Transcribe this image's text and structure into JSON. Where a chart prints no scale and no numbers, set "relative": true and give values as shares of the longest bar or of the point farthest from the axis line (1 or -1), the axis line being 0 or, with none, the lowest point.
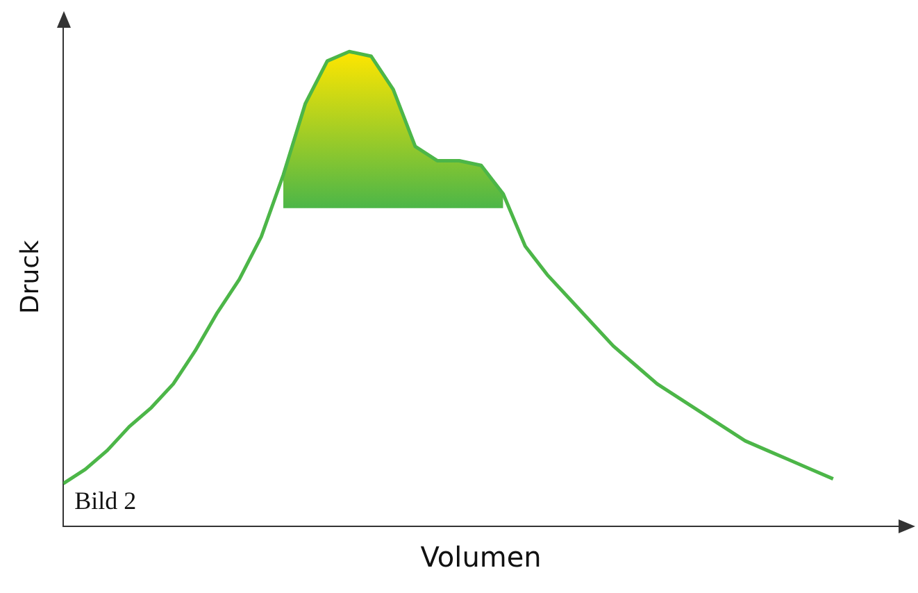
{
  "chart_data": {
    "type": "line",
    "xlabel": "Volumen",
    "ylabel": "Druck",
    "relative": true,
    "grid": false,
    "legend": false,
    "tick_labels": false,
    "marker": "none",
    "line_style": "solid",
    "categories": [
      null,
      null,
      null,
      null,
      null,
      null,
      null,
      null,
      null,
      null,
      null,
      null,
      null,
      null,
      null,
      null,
      null,
      null,
      null,
      null,
      null,
      null,
      null,
      null,
      null,
      null,
      null,
      null,
      null,
      null,
      null,
      null,
      null,
      null,
      null,
      null
    ],
    "series": [
      {
        "color": "#4cb648",
        "values": [
          0.09,
          0.12,
          0.16,
          0.21,
          0.25,
          0.3,
          0.37,
          0.45,
          0.52,
          0.61,
          0.74,
          0.89,
          0.98,
          1,
          0.99,
          0.92,
          0.8,
          0.77,
          0.77,
          0.76,
          0.7,
          0.59,
          0.53,
          0.48,
          0.43,
          0.38,
          0.34,
          0.3,
          0.27,
          0.24,
          0.21,
          0.18,
          0.16,
          0.14,
          0.12,
          0.1
        ],
        "lower": [
          null,
          null,
          null,
          null,
          null,
          null,
          null,
          null,
          null,
          null,
          0.67,
          0.67,
          0.67,
          0.67,
          0.67,
          0.67,
          0.67,
          0.67,
          0.67,
          0.67,
          0.67,
          null,
          null,
          null,
          null,
          null,
          null,
          null,
          null,
          null,
          null,
          null,
          null,
          null,
          null,
          null
        ],
        "upper": [
          null,
          null,
          null,
          null,
          null,
          null,
          null,
          null,
          null,
          null,
          0.74,
          0.89,
          0.98,
          1,
          0.99,
          0.92,
          0.8,
          0.77,
          0.77,
          0.76,
          0.7,
          null,
          null,
          null,
          null,
          null,
          null,
          null,
          null,
          null,
          null,
          null,
          null,
          null,
          null,
          null
        ]
      }
    ],
    "annotations": [
      "Bild 2"
    ]
  }
}
